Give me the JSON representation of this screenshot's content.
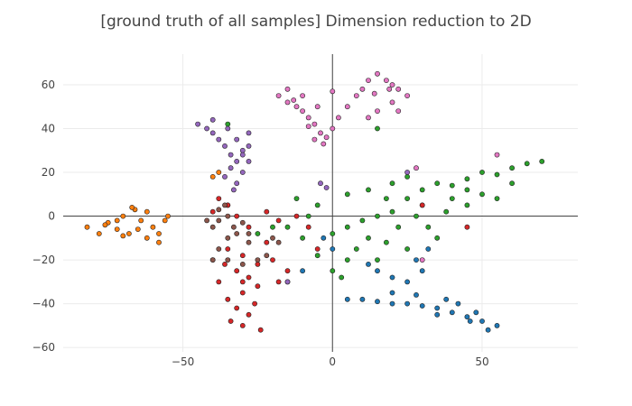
{
  "chart_data": {
    "type": "scatter",
    "title": "[ground truth of all samples]  Dimension reduction to 2D",
    "xlabel": "",
    "ylabel": "",
    "xlim": [
      -90,
      82
    ],
    "ylim": [
      -62,
      74
    ],
    "xticks": [
      -50,
      0,
      50
    ],
    "yticks": [
      -60,
      -40,
      -20,
      0,
      20,
      40,
      60
    ],
    "grid": true,
    "legend": "none",
    "clusters": [
      {
        "color": "#1f77b4",
        "points": [
          [
            5,
            -38
          ],
          [
            10,
            -38
          ],
          [
            15,
            -39
          ],
          [
            20,
            -40
          ],
          [
            25,
            -40
          ],
          [
            30,
            -41
          ],
          [
            35,
            -42
          ],
          [
            40,
            -44
          ],
          [
            45,
            -46
          ],
          [
            50,
            -48
          ],
          [
            55,
            -50
          ],
          [
            48,
            -44
          ],
          [
            42,
            -40
          ],
          [
            28,
            -36
          ],
          [
            20,
            -28
          ],
          [
            15,
            -25
          ],
          [
            12,
            -22
          ],
          [
            25,
            -30
          ],
          [
            30,
            -25
          ],
          [
            28,
            -20
          ],
          [
            32,
            -15
          ],
          [
            -10,
            -25
          ],
          [
            -15,
            -30
          ],
          [
            0,
            -15
          ],
          [
            -3,
            -10
          ],
          [
            20,
            -35
          ],
          [
            38,
            -38
          ],
          [
            52,
            -52
          ],
          [
            46,
            -48
          ],
          [
            35,
            -45
          ]
        ]
      },
      {
        "color": "#ff7f0e",
        "points": [
          [
            -82,
            -5
          ],
          [
            -78,
            -8
          ],
          [
            -75,
            -3
          ],
          [
            -72,
            -6
          ],
          [
            -70,
            0
          ],
          [
            -68,
            -8
          ],
          [
            -66,
            3
          ],
          [
            -64,
            -2
          ],
          [
            -62,
            -10
          ],
          [
            -60,
            -5
          ],
          [
            -58,
            -12
          ],
          [
            -56,
            -2
          ],
          [
            -55,
            0
          ],
          [
            -65,
            -6
          ],
          [
            -70,
            -9
          ],
          [
            -76,
            -4
          ],
          [
            -62,
            2
          ],
          [
            -67,
            4
          ],
          [
            -72,
            -2
          ],
          [
            -58,
            -8
          ],
          [
            -38,
            20
          ],
          [
            -40,
            18
          ],
          [
            -35,
            5
          ]
        ]
      },
      {
        "color": "#2ca02c",
        "points": [
          [
            20,
            15
          ],
          [
            25,
            18
          ],
          [
            30,
            12
          ],
          [
            35,
            15
          ],
          [
            40,
            14
          ],
          [
            45,
            17
          ],
          [
            50,
            20
          ],
          [
            55,
            19
          ],
          [
            60,
            22
          ],
          [
            65,
            24
          ],
          [
            70,
            25
          ],
          [
            40,
            8
          ],
          [
            45,
            5
          ],
          [
            30,
            5
          ],
          [
            20,
            2
          ],
          [
            15,
            0
          ],
          [
            10,
            -2
          ],
          [
            5,
            -5
          ],
          [
            0,
            -8
          ],
          [
            8,
            -15
          ],
          [
            12,
            -10
          ],
          [
            18,
            -12
          ],
          [
            22,
            -5
          ],
          [
            28,
            0
          ],
          [
            32,
            -5
          ],
          [
            35,
            -10
          ],
          [
            25,
            -15
          ],
          [
            15,
            -20
          ],
          [
            5,
            -20
          ],
          [
            0,
            -25
          ],
          [
            -5,
            -18
          ],
          [
            -10,
            -10
          ],
          [
            -15,
            -5
          ],
          [
            -8,
            0
          ],
          [
            -5,
            5
          ],
          [
            -12,
            8
          ],
          [
            5,
            10
          ],
          [
            12,
            12
          ],
          [
            18,
            8
          ],
          [
            25,
            8
          ],
          [
            50,
            10
          ],
          [
            55,
            8
          ],
          [
            60,
            15
          ],
          [
            45,
            12
          ],
          [
            38,
            2
          ],
          [
            3,
            -28
          ],
          [
            -20,
            -5
          ],
          [
            -25,
            -8
          ],
          [
            -35,
            42
          ],
          [
            15,
            40
          ]
        ]
      },
      {
        "color": "#d62728",
        "points": [
          [
            -30,
            -50
          ],
          [
            -28,
            -45
          ],
          [
            -32,
            -42
          ],
          [
            -35,
            -38
          ],
          [
            -30,
            -35
          ],
          [
            -25,
            -32
          ],
          [
            -28,
            -28
          ],
          [
            -32,
            -25
          ],
          [
            -36,
            -22
          ],
          [
            -40,
            -20
          ],
          [
            -35,
            -15
          ],
          [
            -30,
            -18
          ],
          [
            -25,
            -22
          ],
          [
            -20,
            -20
          ],
          [
            -22,
            -12
          ],
          [
            -28,
            -5
          ],
          [
            -32,
            0
          ],
          [
            -35,
            5
          ],
          [
            -38,
            8
          ],
          [
            -40,
            2
          ],
          [
            -34,
            -48
          ],
          [
            -26,
            -40
          ],
          [
            -24,
            -52
          ],
          [
            -38,
            -30
          ],
          [
            -15,
            -25
          ],
          [
            -18,
            -30
          ],
          [
            -12,
            0
          ],
          [
            -8,
            -5
          ],
          [
            -5,
            -15
          ],
          [
            -18,
            -2
          ],
          [
            -22,
            2
          ],
          [
            30,
            5
          ],
          [
            45,
            -5
          ],
          [
            -30,
            -30
          ]
        ]
      },
      {
        "color": "#9467bd",
        "points": [
          [
            -45,
            42
          ],
          [
            -42,
            40
          ],
          [
            -40,
            38
          ],
          [
            -38,
            35
          ],
          [
            -36,
            32
          ],
          [
            -34,
            28
          ],
          [
            -32,
            25
          ],
          [
            -34,
            22
          ],
          [
            -36,
            18
          ],
          [
            -32,
            15
          ],
          [
            -30,
            20
          ],
          [
            -28,
            25
          ],
          [
            -30,
            30
          ],
          [
            -32,
            35
          ],
          [
            -28,
            38
          ],
          [
            -30,
            28
          ],
          [
            -35,
            40
          ],
          [
            -40,
            44
          ],
          [
            -33,
            12
          ],
          [
            -28,
            32
          ],
          [
            -4,
            15
          ],
          [
            -2,
            13
          ],
          [
            25,
            20
          ],
          [
            -15,
            -30
          ]
        ]
      },
      {
        "color": "#8c564b",
        "points": [
          [
            -40,
            -5
          ],
          [
            -38,
            -2
          ],
          [
            -35,
            0
          ],
          [
            -33,
            -5
          ],
          [
            -30,
            -3
          ],
          [
            -28,
            -8
          ],
          [
            -35,
            -10
          ],
          [
            -38,
            -15
          ],
          [
            -40,
            -20
          ],
          [
            -35,
            -20
          ],
          [
            -30,
            -22
          ],
          [
            -22,
            -18
          ],
          [
            -25,
            -20
          ],
          [
            -20,
            -10
          ],
          [
            -18,
            -12
          ],
          [
            -42,
            -2
          ],
          [
            -36,
            5
          ],
          [
            -38,
            3
          ],
          [
            -28,
            -12
          ],
          [
            -32,
            -8
          ]
        ]
      },
      {
        "color": "#e377c2",
        "points": [
          [
            -18,
            55
          ],
          [
            -15,
            52
          ],
          [
            -12,
            50
          ],
          [
            -10,
            48
          ],
          [
            -8,
            45
          ],
          [
            -6,
            42
          ],
          [
            -4,
            38
          ],
          [
            -2,
            36
          ],
          [
            0,
            40
          ],
          [
            2,
            45
          ],
          [
            -5,
            50
          ],
          [
            -10,
            55
          ],
          [
            -15,
            58
          ],
          [
            5,
            50
          ],
          [
            8,
            55
          ],
          [
            10,
            58
          ],
          [
            12,
            62
          ],
          [
            15,
            65
          ],
          [
            18,
            62
          ],
          [
            20,
            60
          ],
          [
            22,
            58
          ],
          [
            25,
            55
          ],
          [
            20,
            52
          ],
          [
            15,
            48
          ],
          [
            12,
            45
          ],
          [
            22,
            48
          ],
          [
            -6,
            35
          ],
          [
            -3,
            33
          ],
          [
            0,
            57
          ],
          [
            14,
            56
          ],
          [
            19,
            58
          ],
          [
            -13,
            53
          ],
          [
            -8,
            41
          ],
          [
            55,
            28
          ],
          [
            28,
            22
          ],
          [
            30,
            -20
          ]
        ]
      }
    ]
  }
}
